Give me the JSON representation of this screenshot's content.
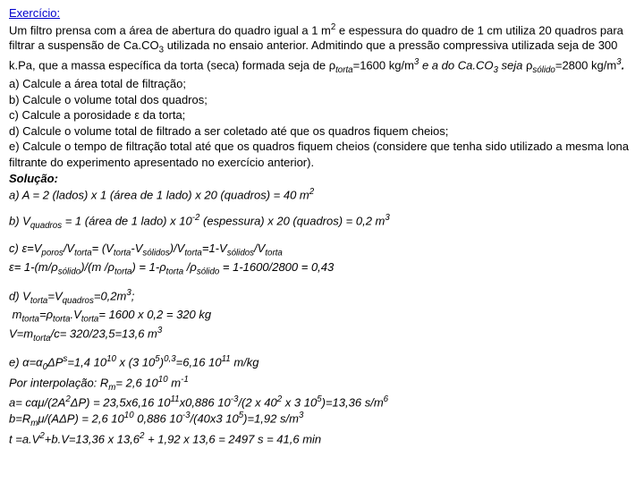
{
  "header": {
    "title": "Exercício:"
  },
  "body": {
    "p1": "Um filtro prensa com a área de abertura do quadro igual a 1 m",
    "p1b": " e espessura do quadro de 1 cm utiliza 20 quadros para filtrar a suspensão de Ca.CO",
    "p1c": " utilizada no ensaio anterior. Admitindo que a pressão compressiva utilizada seja de 300 k.Pa, que a massa específica da torta (seca) formada seja de ",
    "rho_torta": "ρ",
    "torta_sub": "torta",
    "eq1600": "=1600 kg/m",
    "e_a_do": " e a do Ca.CO",
    "seja": " seja ",
    "rho_solido": "ρ",
    "solido_sub": "sólido",
    "eq2800": "=2800 kg/m",
    "period": ".",
    "a": "a) Calcule a área total de filtração;",
    "b": "b) Calcule o volume total dos quadros;",
    "c": "c) Calcule a porosidade ε da torta;",
    "d": "d) Calcule o volume total de filtrado a ser coletado até que os quadros fiquem cheios;",
    "e": "e) Calcule o tempo de filtração total até que os quadros fiquem cheios (considere que tenha sido utilizado a mesma lona filtrante do experimento apresentado no exercício anterior).",
    "solucao": "Solução:",
    "sol_a": "a) A = 2 (lados) x 1 (área de 1 lado) x 20 (quadros) = 40 m",
    "sol_b_pre": "b) V",
    "sol_b_sub": "quadros",
    "sol_b_mid": " = 1 (área de 1 lado) x 10",
    "sol_b_mid2": " (espessura) x 20 (quadros) = 0,2 m",
    "sol_c1a": "c) ε=V",
    "sol_c1_sub1": "poros",
    "sol_c1b": "/V",
    "sol_c1_sub2": "torta",
    "sol_c1c": "= (V",
    "sol_c1d": "-V",
    "sol_c1_sub3": "sólidos",
    "sol_c1e": ")/V",
    "sol_c1f": "=1-V",
    "sol_c1g": "/V",
    "sol_c2a": "ε= 1-(m/ρ",
    "sol_c2b": ")/(m /ρ",
    "sol_c2c": ") = 1-ρ",
    "sol_c2d": " /ρ",
    "sol_c2e": " = 1-1600/2800 = 0,43",
    "sol_d1a": "d) V",
    "sol_d1b": "=V",
    "sol_d1c": "=0,2m",
    "sol_d1d": ";",
    "sol_d2a": "m",
    "sol_d2b": "=ρ",
    "sol_d2c": ".V",
    "sol_d2d": "= 1600 x 0,2 = 320 kg",
    "sol_d3": "V=m",
    "sol_d3b": "/c= 320/23,5=13,6 m",
    "sol_e1": "e) α=α",
    "sol_e1a": "ΔP",
    "sol_e1b": "=1,4 10",
    "sol_e1c": " x (3 10",
    "sol_e1d": ")",
    "sol_e1e": "=6,16 10",
    "sol_e1f": " m/kg",
    "sol_e2a": "Por interpolação: R",
    "sol_e2b": "= 2,6 10",
    "sol_e2c": " m",
    "sol_e3": "a= cαμ/(2A",
    "sol_e3b": "ΔP) = 23,5x6,16 10",
    "sol_e3c": "x0,886 10",
    "sol_e3d": "/(2 x 40",
    "sol_e3e": " x 3 10",
    "sol_e3f": ")=13,36 s/m",
    "sol_e4a": "b=R",
    "sol_e4b": "μ/(AΔP) = 2,6 10",
    "sol_e4c": " 0,886 10",
    "sol_e4d": "/(40x3 10",
    "sol_e4e": ")=1,92 s/m",
    "sol_e5": "t =a.V",
    "sol_e5b": "+b.V=13,36 x 13,6",
    "sol_e5c": " + 1,92 x 13,6 = 2497 s = 41,6 min",
    "sup2": "2",
    "sup3": "3",
    "supneg2": "-2",
    "sub3": "3",
    "sup10": "10",
    "sup5": "5",
    "sup03": "0,3",
    "sup11": "11",
    "supneg1": "-1",
    "supneg3": "-3",
    "sup6": "6",
    "sub0": "0",
    "subs": "s",
    "subm": "m"
  }
}
